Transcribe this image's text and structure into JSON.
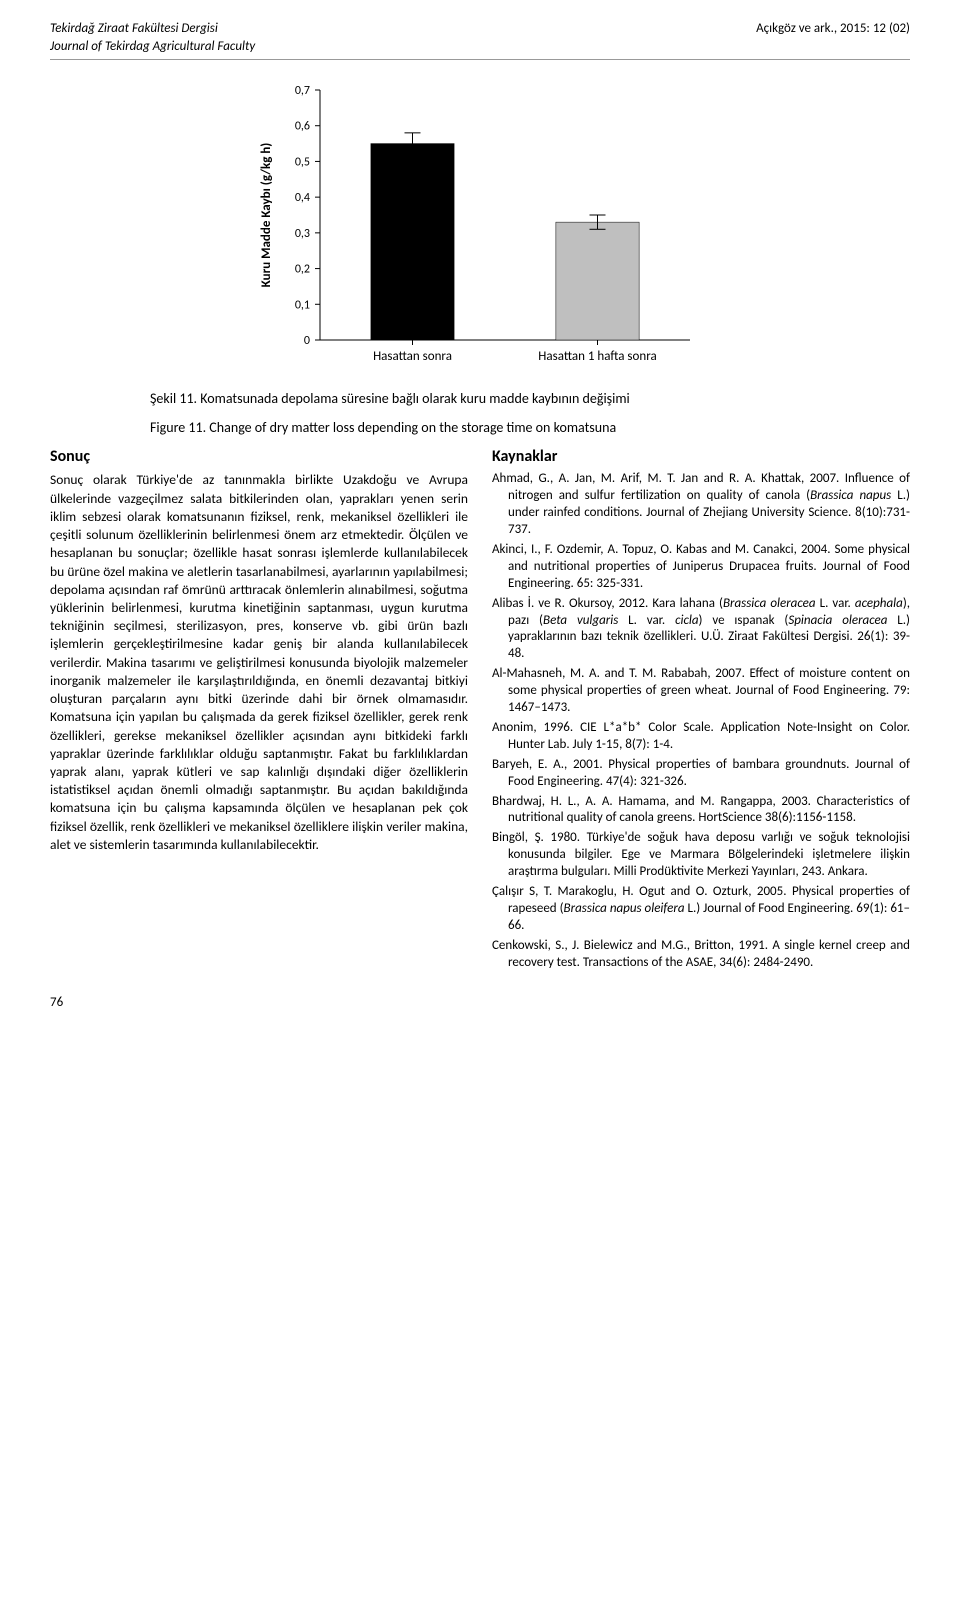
{
  "header": {
    "journal_tr": "Tekirdağ Ziraat Fakültesi Dergisi",
    "journal_en": "Journal of Tekirdag Agricultural Faculty",
    "citation": "Açıkgöz ve ark.,  2015:  12 (02)"
  },
  "chart": {
    "type": "bar",
    "y_label": "Kuru Madde Kaybı (g/kg h)",
    "categories": [
      "Hasattan sonra",
      "Hasattan 1 hafta sonra"
    ],
    "values": [
      0.55,
      0.33
    ],
    "errors": [
      0.03,
      0.02
    ],
    "bar_colors": [
      "#000000",
      "#bfbfbf"
    ],
    "ylim": [
      0,
      0.7
    ],
    "ytick_step": 0.1,
    "yticks": [
      "0",
      "0,1",
      "0,2",
      "0,3",
      "0,4",
      "0,5",
      "0,6",
      "0,7"
    ],
    "bar_width": 0.45,
    "background_color": "#ffffff",
    "axis_color": "#000000",
    "tick_font_size": 12,
    "label_font_size": 13
  },
  "figure": {
    "caption_tr": "Şekil 11. Komatsunada depolama süresine bağlı olarak kuru madde kaybının değişimi",
    "caption_en": "Figure 11. Change of dry matter loss depending on the storage time on komatsuna"
  },
  "left": {
    "title": "Sonuç",
    "body": "Sonuç olarak Türkiye'de az tanınmakla birlikte Uzakdoğu ve Avrupa ülkelerinde vazgeçilmez salata bitkilerinden olan, yaprakları yenen serin iklim sebzesi olarak komatsunanın fiziksel, renk, mekaniksel özellikleri ile çeşitli solunum özelliklerinin belirlenmesi önem arz etmektedir. Ölçülen ve hesaplanan bu sonuçlar; özellikle hasat sonrası işlemlerde kullanılabilecek bu ürüne özel makina ve aletlerin tasarlanabilmesi, ayarlarının yapılabilmesi; depolama açısından raf ömrünü arttıracak önlemlerin alınabilmesi, soğutma yüklerinin belirlenmesi, kurutma kinetiğinin saptanması, uygun kurutma tekniğinin seçilmesi, sterilizasyon, pres, konserve vb. gibi ürün bazlı işlemlerin gerçekleştirilmesine kadar geniş bir alanda kullanılabilecek verilerdir. Makina tasarımı ve geliştirilmesi konusunda biyolojik malzemeler inorganik malzemeler ile karşılaştırıldığında, en önemli dezavantaj bitkiyi oluşturan parçaların aynı bitki üzerinde dahi bir örnek olmamasıdır. Komatsuna için yapılan bu çalışmada da gerek fiziksel özellikler, gerek renk özellikleri, gerekse mekaniksel özellikler açısından aynı bitkideki farklı yapraklar üzerinde farklılıklar olduğu saptanmıştır. Fakat bu farklılıklardan yaprak alanı, yaprak kütleri ve sap kalınlığı dışındaki diğer özelliklerin istatistiksel açıdan önemli olmadığı saptanmıştır. Bu açıdan bakıldığında komatsuna için bu çalışma kapsamında ölçülen ve hesaplanan pek çok fiziksel özellik, renk özellikleri ve mekaniksel özelliklere ilişkin veriler makina, alet ve sistemlerin tasarımında kullanılabilecektir."
  },
  "right": {
    "title": "Kaynaklar",
    "refs": [
      "Ahmad, G., A. Jan, M. Arif, M. T. Jan and R. A. Khattak, 2007. Influence of nitrogen and sulfur fertilization on quality of canola (<em>Brassica napus</em> L.) under rainfed conditions. Journal of Zhejiang University Science. 8(10):731-737.",
      "Akinci, I., F. Ozdemir, A. Topuz, O. Kabas and M. Canakci, 2004. Some physical and nutritional properties of Juniperus Drupacea fruits. Journal of Food Engineering. 65: 325-331.",
      "Alibas İ. ve R. Okursoy, 2012.  Kara lahana (<em>Brassica oleracea</em> L. var. <em>acephala</em>), pazı (<em>Beta vulgaris</em> L. var. <em>cicla</em>) ve ıspanak (<em>Spinacia oleracea</em> L.) yapraklarının bazı teknik özellikleri. U.Ü. Ziraat Fakültesi Dergisi. 26(1): 39-48.",
      "Al-Mahasneh, M. A. and T. M. Rababah, 2007. Effect of moisture content on some physical properties of green wheat. Journal of Food Engineering. 79: 1467–1473.",
      "Anonim, 1996. CIE L*a*b* Color Scale. Application Note-Insight on Color. Hunter Lab. July 1-15, 8(7): 1-4.",
      "Baryeh, E. A., 2001. Physical properties of bambara groundnuts. Journal of Food Engineering. 47(4): 321-326.",
      "Bhardwaj, H. L., A. A. Hamama, and M. Rangappa, 2003. Characteristics of nutritional quality of canola greens. HortScience 38(6):1156-1158.",
      "Bingöl, Ş. 1980. Türkiye'de soğuk hava deposu varlığı ve soğuk teknolojisi konusunda bilgiler. Ege ve Marmara Bölgelerindeki işletmelere ilişkin araştırma bulguları. Milli Prodüktivite Merkezi Yayınları, 243. Ankara.",
      "Çalışır S, T. Marakoglu, H. Ogut and O. Ozturk,  2005. Physical properties of rapeseed (<em>Brassica napus oleifera</em> L.) Journal of Food Engineering. 69(1): 61–66.",
      "Cenkowski, S., J. Bielewicz and M.G., Britton, 1991. A single kernel creep and recovery test. Transactions of the ASAE, 34(6): 2484-2490."
    ]
  },
  "page_number": "76"
}
